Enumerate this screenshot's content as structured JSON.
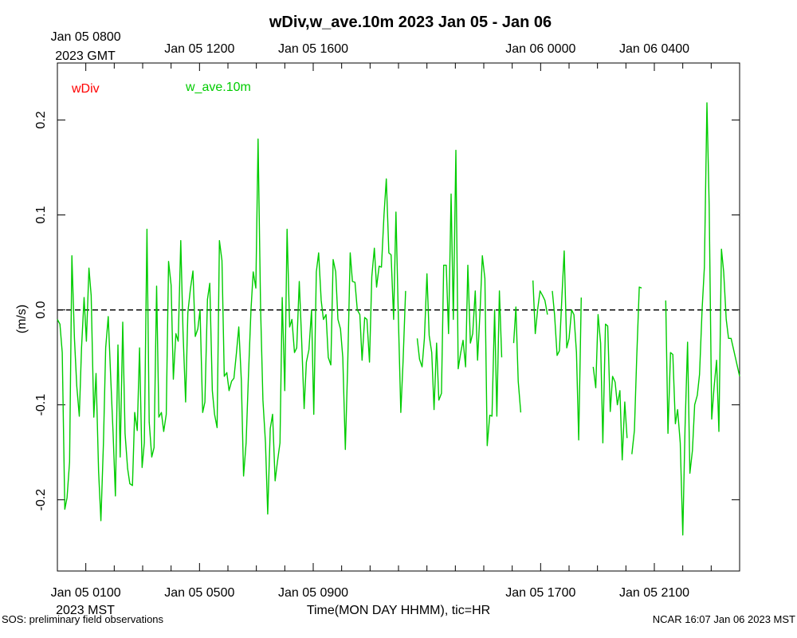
{
  "chart_data": {
    "type": "line",
    "title": "wDiv,w_ave.10m 2023 Jan 05 - Jan 06",
    "xlabel": "Time(MON DAY HHMM), tic=HR",
    "ylabel": "(m/s)",
    "ylim": [
      -0.275,
      0.26
    ],
    "xlim_hours": [
      0,
      24
    ],
    "yticks": [
      {
        "value": -0.2,
        "label": "-0.2"
      },
      {
        "value": -0.1,
        "label": "-0.1"
      },
      {
        "value": 0.0,
        "label": "0.0"
      },
      {
        "value": 0.1,
        "label": "0.1"
      },
      {
        "value": 0.2,
        "label": "0.2"
      }
    ],
    "bottom_axis": {
      "timezone_label": "2023 MST",
      "labels": [
        {
          "hour": 1,
          "text": "Jan 05 0100"
        },
        {
          "hour": 5,
          "text": "Jan 05 0500"
        },
        {
          "hour": 9,
          "text": "Jan 05 0900"
        },
        {
          "hour": 17,
          "text": "Jan 05 1700"
        },
        {
          "hour": 21,
          "text": "Jan 05 2100"
        }
      ]
    },
    "top_axis": {
      "timezone_label": "2023 GMT",
      "labels": [
        {
          "hour": 1,
          "text": "Jan 05 0800"
        },
        {
          "hour": 5,
          "text": "Jan 05 1200"
        },
        {
          "hour": 9,
          "text": "Jan 05 1600"
        },
        {
          "hour": 17,
          "text": "Jan 06 0000"
        },
        {
          "hour": 21,
          "text": "Jan 06 0400"
        }
      ]
    },
    "legend": [
      {
        "name": "wDiv",
        "color": "#ff0000"
      },
      {
        "name": "w_ave.10m",
        "color": "#00cc00"
      }
    ],
    "reference_line": {
      "y": 0.0,
      "style": "dashed",
      "color": "#000000"
    },
    "series": [
      {
        "name": "w_ave.10m",
        "color": "#00cc00",
        "segments": [
          [
            [
              0.0,
              -0.01
            ],
            [
              0.09,
              -0.015
            ],
            [
              0.17,
              -0.045
            ],
            [
              0.26,
              -0.21
            ],
            [
              0.34,
              -0.198
            ],
            [
              0.43,
              -0.16
            ],
            [
              0.51,
              0.057
            ],
            [
              0.6,
              -0.03
            ],
            [
              0.68,
              -0.08
            ],
            [
              0.77,
              -0.112
            ],
            [
              0.85,
              -0.04
            ],
            [
              0.94,
              0.013
            ],
            [
              1.02,
              -0.033
            ],
            [
              1.11,
              0.044
            ],
            [
              1.19,
              0.015
            ],
            [
              1.28,
              -0.113
            ],
            [
              1.36,
              -0.067
            ],
            [
              1.45,
              -0.17
            ],
            [
              1.53,
              -0.222
            ],
            [
              1.62,
              -0.14
            ],
            [
              1.7,
              -0.04
            ],
            [
              1.79,
              -0.007
            ],
            [
              1.87,
              -0.067
            ],
            [
              1.96,
              -0.13
            ],
            [
              2.04,
              -0.196
            ],
            [
              2.13,
              -0.037
            ],
            [
              2.21,
              -0.155
            ],
            [
              2.3,
              -0.013
            ],
            [
              2.38,
              -0.13
            ],
            [
              2.47,
              -0.167
            ],
            [
              2.55,
              -0.183
            ],
            [
              2.64,
              -0.185
            ],
            [
              2.72,
              -0.108
            ],
            [
              2.81,
              -0.127
            ],
            [
              2.89,
              -0.04
            ],
            [
              2.98,
              -0.166
            ],
            [
              3.06,
              -0.14
            ],
            [
              3.15,
              0.085
            ],
            [
              3.23,
              -0.118
            ],
            [
              3.32,
              -0.155
            ],
            [
              3.4,
              -0.145
            ],
            [
              3.49,
              0.025
            ],
            [
              3.57,
              -0.113
            ],
            [
              3.66,
              -0.108
            ],
            [
              3.74,
              -0.128
            ],
            [
              3.83,
              -0.11
            ],
            [
              3.91,
              0.051
            ],
            [
              4.0,
              0.026
            ],
            [
              4.08,
              -0.073
            ],
            [
              4.17,
              -0.025
            ],
            [
              4.25,
              -0.033
            ],
            [
              4.34,
              0.073
            ],
            [
              4.42,
              -0.022
            ],
            [
              4.51,
              -0.097
            ],
            [
              4.59,
              -0.003
            ],
            [
              4.68,
              0.022
            ],
            [
              4.77,
              0.041
            ],
            [
              4.85,
              -0.028
            ],
            [
              4.94,
              -0.02
            ],
            [
              5.02,
              0.0
            ],
            [
              5.11,
              -0.108
            ],
            [
              5.19,
              -0.097
            ],
            [
              5.28,
              0.011
            ],
            [
              5.36,
              0.028
            ],
            [
              5.45,
              -0.085
            ],
            [
              5.53,
              -0.11
            ],
            [
              5.62,
              -0.124
            ],
            [
              5.7,
              0.073
            ],
            [
              5.79,
              0.052
            ],
            [
              5.87,
              -0.07
            ],
            [
              5.96,
              -0.066
            ],
            [
              6.04,
              -0.085
            ],
            [
              6.13,
              -0.075
            ],
            [
              6.21,
              -0.072
            ],
            [
              6.3,
              -0.045
            ],
            [
              6.38,
              -0.018
            ],
            [
              6.47,
              -0.074
            ],
            [
              6.55,
              -0.175
            ],
            [
              6.64,
              -0.14
            ],
            [
              6.72,
              -0.07
            ],
            [
              6.81,
              0.0
            ],
            [
              6.89,
              0.04
            ],
            [
              6.98,
              0.023
            ],
            [
              7.06,
              0.18
            ],
            [
              7.15,
              0.0
            ],
            [
              7.23,
              -0.095
            ],
            [
              7.32,
              -0.14
            ],
            [
              7.4,
              -0.215
            ],
            [
              7.49,
              -0.125
            ],
            [
              7.57,
              -0.11
            ],
            [
              7.66,
              -0.18
            ],
            [
              7.74,
              -0.16
            ],
            [
              7.83,
              -0.14
            ],
            [
              7.91,
              0.013
            ],
            [
              8.0,
              -0.085
            ],
            [
              8.08,
              0.085
            ],
            [
              8.17,
              -0.018
            ],
            [
              8.25,
              -0.01
            ],
            [
              8.34,
              -0.045
            ],
            [
              8.42,
              -0.04
            ],
            [
              8.51,
              0.03
            ],
            [
              8.59,
              -0.03
            ],
            [
              8.68,
              -0.104
            ],
            [
              8.76,
              -0.055
            ],
            [
              8.85,
              -0.042
            ],
            [
              8.94,
              0.0
            ],
            [
              9.02,
              -0.11
            ],
            [
              9.11,
              0.04
            ],
            [
              9.19,
              0.06
            ],
            [
              9.28,
              0.01
            ],
            [
              9.36,
              -0.01
            ],
            [
              9.45,
              -0.005
            ],
            [
              9.53,
              -0.05
            ],
            [
              9.62,
              -0.058
            ],
            [
              9.7,
              0.053
            ],
            [
              9.79,
              0.04
            ],
            [
              9.87,
              -0.01
            ],
            [
              9.96,
              -0.02
            ],
            [
              10.04,
              -0.05
            ],
            [
              10.13,
              -0.147
            ],
            [
              10.21,
              -0.06
            ],
            [
              10.3,
              0.06
            ],
            [
              10.38,
              0.03
            ],
            [
              10.47,
              0.029
            ],
            [
              10.55,
              0.0
            ],
            [
              10.64,
              -0.005
            ],
            [
              10.72,
              -0.053
            ],
            [
              10.81,
              -0.008
            ],
            [
              10.89,
              -0.01
            ],
            [
              10.98,
              -0.055
            ],
            [
              11.06,
              0.035
            ],
            [
              11.15,
              0.065
            ],
            [
              11.23,
              0.024
            ],
            [
              11.32,
              0.046
            ],
            [
              11.4,
              0.045
            ],
            [
              11.49,
              0.1
            ],
            [
              11.57,
              0.138
            ],
            [
              11.66,
              0.06
            ],
            [
              11.74,
              0.058
            ],
            [
              11.83,
              -0.01
            ],
            [
              11.91,
              0.103
            ],
            [
              11.99,
              -0.0
            ],
            [
              12.08,
              -0.108
            ],
            [
              12.16,
              -0.055
            ],
            [
              12.25,
              0.02
            ]
          ],
          [
            [
              12.66,
              -0.03
            ],
            [
              12.74,
              -0.052
            ],
            [
              12.83,
              -0.06
            ],
            [
              12.91,
              -0.03
            ],
            [
              13.0,
              0.038
            ],
            [
              13.08,
              -0.027
            ],
            [
              13.17,
              -0.045
            ],
            [
              13.25,
              -0.105
            ],
            [
              13.34,
              -0.035
            ],
            [
              13.42,
              -0.095
            ],
            [
              13.51,
              -0.088
            ],
            [
              13.59,
              0.047
            ],
            [
              13.68,
              0.047
            ],
            [
              13.76,
              -0.025
            ],
            [
              13.85,
              0.122
            ],
            [
              13.93,
              -0.01
            ],
            [
              14.02,
              0.168
            ],
            [
              14.1,
              -0.062
            ],
            [
              14.19,
              -0.045
            ],
            [
              14.27,
              -0.032
            ],
            [
              14.36,
              -0.06
            ],
            [
              14.44,
              0.047
            ],
            [
              14.53,
              -0.035
            ],
            [
              14.61,
              -0.025
            ],
            [
              14.7,
              0.02
            ],
            [
              14.78,
              -0.053
            ],
            [
              14.87,
              0.0
            ],
            [
              14.95,
              0.057
            ],
            [
              15.04,
              0.033
            ],
            [
              15.12,
              -0.143
            ],
            [
              15.21,
              -0.111
            ],
            [
              15.29,
              -0.112
            ],
            [
              15.38,
              0.0
            ],
            [
              15.46,
              -0.112
            ],
            [
              15.55,
              0.02
            ],
            [
              15.63,
              -0.05
            ]
          ],
          [
            [
              16.05,
              -0.035
            ],
            [
              16.13,
              0.003
            ],
            [
              16.21,
              -0.075
            ],
            [
              16.3,
              -0.108
            ]
          ],
          [
            [
              16.73,
              0.031
            ],
            [
              16.81,
              -0.025
            ],
            [
              16.9,
              0.002
            ],
            [
              16.98,
              0.02
            ],
            [
              17.07,
              0.015
            ],
            [
              17.15,
              0.01
            ],
            [
              17.24,
              -0.005
            ]
          ],
          [
            [
              17.41,
              0.02
            ],
            [
              17.49,
              -0.005
            ],
            [
              17.58,
              -0.048
            ],
            [
              17.66,
              -0.043
            ],
            [
              17.75,
              0.015
            ],
            [
              17.83,
              0.062
            ],
            [
              17.92,
              -0.04
            ],
            [
              18.0,
              -0.03
            ],
            [
              18.09,
              0.0
            ],
            [
              18.17,
              -0.005
            ],
            [
              18.26,
              -0.045
            ],
            [
              18.34,
              -0.137
            ],
            [
              18.43,
              0.013
            ]
          ],
          [
            [
              18.85,
              -0.06
            ],
            [
              18.94,
              -0.082
            ],
            [
              19.02,
              -0.005
            ],
            [
              19.11,
              -0.035
            ],
            [
              19.19,
              -0.14
            ],
            [
              19.28,
              -0.015
            ],
            [
              19.36,
              -0.017
            ],
            [
              19.45,
              -0.107
            ],
            [
              19.53,
              -0.07
            ],
            [
              19.62,
              -0.076
            ],
            [
              19.7,
              -0.1
            ],
            [
              19.79,
              -0.085
            ],
            [
              19.87,
              -0.158
            ],
            [
              19.96,
              -0.097
            ],
            [
              20.04,
              -0.135
            ]
          ],
          [
            [
              20.21,
              -0.152
            ],
            [
              20.3,
              -0.127
            ],
            [
              20.38,
              -0.05
            ],
            [
              20.47,
              0.024
            ],
            [
              20.55,
              0.023
            ]
          ],
          [
            [
              21.4,
              0.01
            ],
            [
              21.48,
              -0.13
            ],
            [
              21.57,
              -0.045
            ],
            [
              21.65,
              -0.047
            ],
            [
              21.74,
              -0.12
            ],
            [
              21.82,
              -0.105
            ],
            [
              21.91,
              -0.14
            ],
            [
              22.0,
              -0.237
            ],
            [
              22.08,
              -0.125
            ],
            [
              22.17,
              -0.034
            ],
            [
              22.25,
              -0.172
            ],
            [
              22.34,
              -0.148
            ],
            [
              22.42,
              -0.1
            ],
            [
              22.51,
              -0.09
            ],
            [
              22.59,
              -0.068
            ],
            [
              22.68,
              0.0
            ],
            [
              22.76,
              0.045
            ],
            [
              22.85,
              0.218
            ],
            [
              22.93,
              0.11
            ],
            [
              23.02,
              -0.115
            ],
            [
              23.1,
              -0.082
            ],
            [
              23.19,
              -0.053
            ],
            [
              23.27,
              -0.128
            ],
            [
              23.36,
              0.064
            ],
            [
              23.44,
              0.04
            ],
            [
              23.53,
              -0.01
            ],
            [
              23.61,
              -0.03
            ],
            [
              23.7,
              -0.03
            ],
            [
              24.0,
              -0.07
            ]
          ]
        ]
      }
    ]
  },
  "footer": {
    "left": "SOS: preliminary field observations",
    "right": "NCAR 16:07 Jan 06 2023 MST"
  }
}
